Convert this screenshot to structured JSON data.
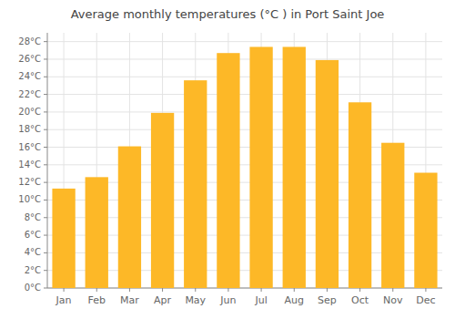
{
  "chart_data": {
    "type": "bar",
    "title": "Average monthly temperatures (°C ) in Port Saint Joe",
    "categories": [
      "Jan",
      "Feb",
      "Mar",
      "Apr",
      "May",
      "Jun",
      "Jul",
      "Aug",
      "Sep",
      "Oct",
      "Nov",
      "Dec"
    ],
    "values": [
      11.3,
      12.6,
      16.1,
      19.9,
      23.6,
      26.7,
      27.4,
      27.4,
      25.9,
      21.1,
      16.5,
      13.1
    ],
    "color": "#FDB827",
    "ylim": [
      0,
      29
    ],
    "yticks": [
      {
        "value": 0,
        "label": "0°C"
      },
      {
        "value": 2,
        "label": "2°C"
      },
      {
        "value": 4,
        "label": "4°C"
      },
      {
        "value": 6,
        "label": "6°C"
      },
      {
        "value": 8,
        "label": "8°C"
      },
      {
        "value": 10,
        "label": "10°C"
      },
      {
        "value": 12,
        "label": "12°C"
      },
      {
        "value": 14,
        "label": "14°C"
      },
      {
        "value": 16,
        "label": "16°C"
      },
      {
        "value": 18,
        "label": "18°C"
      },
      {
        "value": 20,
        "label": "20°C"
      },
      {
        "value": 22,
        "label": "22°C"
      },
      {
        "value": 24,
        "label": "24°C"
      },
      {
        "value": 26,
        "label": "26°C"
      },
      {
        "value": 28,
        "label": "28°C"
      }
    ],
    "grid": true
  }
}
